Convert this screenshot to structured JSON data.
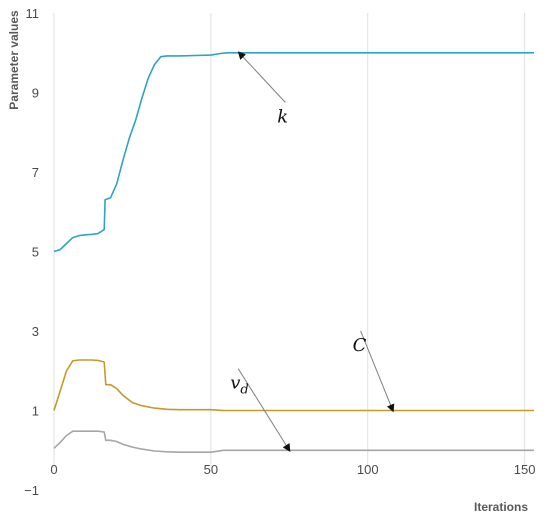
{
  "chart_data": {
    "type": "line",
    "xlabel": "Iterations",
    "ylabel": "Parameter values",
    "xlim": [
      0,
      153
    ],
    "ylim": [
      -1,
      11
    ],
    "x_ticks": [
      0,
      50,
      100,
      150
    ],
    "y_ticks": [
      -1,
      1,
      3,
      5,
      7,
      9,
      11
    ],
    "grid": {
      "vertical": true,
      "horizontal": false
    },
    "legend": "none",
    "colors": {
      "k": "#2ea3c6",
      "C": "#c49a2a",
      "v_d": "#a6a6a6",
      "grid": "#e2e2e2",
      "arrow": "#7f7f7f"
    },
    "series": [
      {
        "name": "k",
        "x": [
          0,
          2,
          4,
          6,
          8,
          10,
          12,
          14,
          15,
          16,
          16.3,
          18,
          20,
          22,
          24,
          26,
          28,
          30,
          32,
          34,
          36,
          40,
          45,
          50,
          53,
          55,
          60,
          80,
          100,
          120,
          153
        ],
        "y": [
          5.0,
          5.05,
          5.2,
          5.35,
          5.4,
          5.42,
          5.43,
          5.45,
          5.5,
          5.55,
          6.3,
          6.35,
          6.7,
          7.3,
          7.85,
          8.3,
          8.85,
          9.35,
          9.7,
          9.9,
          9.92,
          9.92,
          9.93,
          9.94,
          9.98,
          10.0,
          10.0,
          10.0,
          10.0,
          10.0,
          10.0
        ]
      },
      {
        "name": "C",
        "x": [
          0,
          2,
          4,
          6,
          8,
          10,
          12,
          14,
          16,
          16.5,
          18,
          20,
          22,
          25,
          28,
          32,
          36,
          40,
          50,
          54,
          60,
          80,
          100,
          120,
          153
        ],
        "y": [
          1.0,
          1.5,
          2.0,
          2.25,
          2.27,
          2.27,
          2.27,
          2.26,
          2.22,
          1.65,
          1.65,
          1.55,
          1.38,
          1.2,
          1.12,
          1.06,
          1.03,
          1.02,
          1.02,
          1.0,
          1.0,
          1.0,
          1.0,
          1.0,
          1.0
        ]
      },
      {
        "name": "v_d",
        "x": [
          0,
          2,
          4,
          6,
          8,
          10,
          12,
          14,
          16,
          16.5,
          18,
          20,
          22,
          25,
          28,
          32,
          36,
          40,
          50,
          54,
          60,
          80,
          100,
          120,
          153
        ],
        "y": [
          0.05,
          0.2,
          0.37,
          0.48,
          0.48,
          0.48,
          0.48,
          0.48,
          0.46,
          0.25,
          0.25,
          0.22,
          0.15,
          0.08,
          0.03,
          -0.02,
          -0.04,
          -0.05,
          -0.05,
          0.0,
          0.0,
          0.0,
          0.0,
          0.0,
          0.0
        ]
      }
    ],
    "annotations": [
      {
        "label": "k",
        "x": 75,
        "y": 8.4,
        "point_x": 59,
        "point_y": 10.0
      },
      {
        "label": "C",
        "x": 99,
        "y": 2.65,
        "point_x": 108,
        "point_y": 1.0
      },
      {
        "label": "v",
        "subscript": "d",
        "x": 60,
        "y": 1.7,
        "point_x": 75,
        "point_y": 0.0
      }
    ]
  }
}
